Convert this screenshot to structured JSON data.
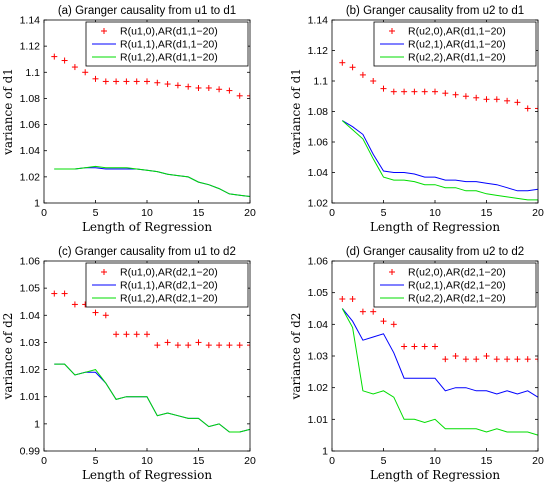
{
  "chart_data": [
    {
      "type": "line",
      "title": "(a) Granger causality from u1 to d1",
      "xlabel": "Length of Regression",
      "ylabel": "variance of d1",
      "xlim": [
        0,
        20
      ],
      "ylim": [
        1.0,
        1.14
      ],
      "xticks": [
        "0",
        "5",
        "10",
        "15",
        "20"
      ],
      "yticks": [
        "1",
        "1.02",
        "1.04",
        "1.06",
        "1.08",
        "1.1",
        "1.12",
        "1.14"
      ],
      "ytick_values": [
        1.0,
        1.02,
        1.04,
        1.06,
        1.08,
        1.1,
        1.12,
        1.14
      ],
      "legend_position": "top-right",
      "x": [
        1,
        2,
        3,
        4,
        5,
        6,
        7,
        8,
        9,
        10,
        11,
        12,
        13,
        14,
        15,
        16,
        17,
        18,
        19,
        20
      ],
      "series": [
        {
          "name": "R(u1,0),AR(d1,1−20)",
          "style": "marker",
          "color": "#ff0000",
          "values": [
            1.112,
            1.109,
            1.104,
            1.1,
            1.095,
            1.093,
            1.093,
            1.093,
            1.093,
            1.093,
            1.092,
            1.091,
            1.09,
            1.089,
            1.088,
            1.088,
            1.087,
            1.086,
            1.082,
            1.082
          ]
        },
        {
          "name": "R(u1,1),AR(d1,1−20)",
          "style": "line",
          "color": "#0000ff",
          "values": [
            1.026,
            1.026,
            1.026,
            1.027,
            1.027,
            1.026,
            1.026,
            1.026,
            1.026,
            1.025,
            1.024,
            1.022,
            1.021,
            1.02,
            1.016,
            1.014,
            1.011,
            1.007,
            1.006,
            1.005
          ]
        },
        {
          "name": "R(u1,2),AR(d1,1−20)",
          "style": "line",
          "color": "#00dd00",
          "values": [
            1.026,
            1.026,
            1.026,
            1.027,
            1.028,
            1.027,
            1.027,
            1.027,
            1.026,
            1.025,
            1.024,
            1.022,
            1.021,
            1.02,
            1.016,
            1.014,
            1.011,
            1.007,
            1.006,
            1.005
          ]
        }
      ]
    },
    {
      "type": "line",
      "title": "(b) Granger causality from u2 to d1",
      "xlabel": "Length of Regression",
      "ylabel": "variance of d1",
      "xlim": [
        0,
        20
      ],
      "ylim": [
        1.02,
        1.14
      ],
      "xticks": [
        "0",
        "5",
        "10",
        "15",
        "20"
      ],
      "yticks": [
        "1.02",
        "1.04",
        "1.06",
        "1.08",
        "1.1",
        "1.12",
        "1.14"
      ],
      "ytick_values": [
        1.02,
        1.04,
        1.06,
        1.08,
        1.1,
        1.12,
        1.14
      ],
      "legend_position": "top-right",
      "x": [
        1,
        2,
        3,
        4,
        5,
        6,
        7,
        8,
        9,
        10,
        11,
        12,
        13,
        14,
        15,
        16,
        17,
        18,
        19,
        20
      ],
      "series": [
        {
          "name": "R(u2,0),AR(d1,1−20)",
          "style": "marker",
          "color": "#ff0000",
          "values": [
            1.112,
            1.109,
            1.104,
            1.1,
            1.095,
            1.093,
            1.093,
            1.093,
            1.093,
            1.093,
            1.092,
            1.091,
            1.09,
            1.089,
            1.088,
            1.088,
            1.087,
            1.086,
            1.082,
            1.082
          ]
        },
        {
          "name": "R(u2,1),AR(d1,1−20)",
          "style": "line",
          "color": "#0000ff",
          "values": [
            1.074,
            1.07,
            1.065,
            1.052,
            1.041,
            1.04,
            1.04,
            1.039,
            1.037,
            1.037,
            1.035,
            1.035,
            1.034,
            1.034,
            1.033,
            1.032,
            1.03,
            1.028,
            1.028,
            1.029
          ]
        },
        {
          "name": "R(u2,2),AR(d1,1−20)",
          "style": "line",
          "color": "#00dd00",
          "values": [
            1.074,
            1.068,
            1.062,
            1.049,
            1.037,
            1.035,
            1.035,
            1.034,
            1.032,
            1.032,
            1.03,
            1.03,
            1.028,
            1.028,
            1.026,
            1.025,
            1.024,
            1.023,
            1.022,
            1.022
          ]
        }
      ]
    },
    {
      "type": "line",
      "title": "(c) Granger causality from u1 to d2",
      "xlabel": "Length of Regression",
      "ylabel": "variance of d2",
      "xlim": [
        0,
        20
      ],
      "ylim": [
        0.99,
        1.06
      ],
      "xticks": [
        "0",
        "5",
        "10",
        "15",
        "20"
      ],
      "yticks": [
        "0.99",
        "1",
        "1.01",
        "1.02",
        "1.03",
        "1.04",
        "1.05",
        "1.06"
      ],
      "ytick_values": [
        0.99,
        1.0,
        1.01,
        1.02,
        1.03,
        1.04,
        1.05,
        1.06
      ],
      "legend_position": "top-right",
      "x": [
        1,
        2,
        3,
        4,
        5,
        6,
        7,
        8,
        9,
        10,
        11,
        12,
        13,
        14,
        15,
        16,
        17,
        18,
        19,
        20
      ],
      "series": [
        {
          "name": "R(u1,0),AR(d2,1−20)",
          "style": "marker",
          "color": "#ff0000",
          "values": [
            1.048,
            1.048,
            1.044,
            1.044,
            1.041,
            1.04,
            1.033,
            1.033,
            1.033,
            1.033,
            1.029,
            1.03,
            1.029,
            1.029,
            1.03,
            1.029,
            1.029,
            1.029,
            1.029,
            1.029
          ]
        },
        {
          "name": "R(u1,1),AR(d2,1−20)",
          "style": "line",
          "color": "#0000ff",
          "values": [
            1.022,
            1.022,
            1.018,
            1.019,
            1.019,
            1.015,
            1.009,
            1.01,
            1.01,
            1.01,
            1.003,
            1.004,
            1.003,
            1.002,
            1.002,
            0.999,
            1.0,
            0.997,
            0.997,
            0.998
          ]
        },
        {
          "name": "R(u1,2),AR(d2,1−20)",
          "style": "line",
          "color": "#00dd00",
          "values": [
            1.022,
            1.022,
            1.018,
            1.019,
            1.02,
            1.015,
            1.009,
            1.01,
            1.01,
            1.01,
            1.003,
            1.004,
            1.003,
            1.002,
            1.002,
            0.999,
            1.0,
            0.997,
            0.997,
            0.998
          ]
        }
      ]
    },
    {
      "type": "line",
      "title": "(d) Granger causality from u2 to d2",
      "xlabel": "Length of Regression",
      "ylabel": "variance of d2",
      "xlim": [
        0,
        20
      ],
      "ylim": [
        1.0,
        1.06
      ],
      "xticks": [
        "0",
        "5",
        "10",
        "15",
        "20"
      ],
      "yticks": [
        "1",
        "1.01",
        "1.02",
        "1.03",
        "1.04",
        "1.05",
        "1.06"
      ],
      "ytick_values": [
        1.0,
        1.01,
        1.02,
        1.03,
        1.04,
        1.05,
        1.06
      ],
      "legend_position": "top-right",
      "x": [
        1,
        2,
        3,
        4,
        5,
        6,
        7,
        8,
        9,
        10,
        11,
        12,
        13,
        14,
        15,
        16,
        17,
        18,
        19,
        20
      ],
      "series": [
        {
          "name": "R(u2,0),AR(d2,1−20)",
          "style": "marker",
          "color": "#ff0000",
          "values": [
            1.048,
            1.048,
            1.044,
            1.044,
            1.041,
            1.04,
            1.033,
            1.033,
            1.033,
            1.033,
            1.029,
            1.03,
            1.029,
            1.029,
            1.03,
            1.029,
            1.029,
            1.029,
            1.029,
            1.029
          ]
        },
        {
          "name": "R(u2,1),AR(d2,1−20)",
          "style": "line",
          "color": "#0000ff",
          "values": [
            1.045,
            1.041,
            1.035,
            1.036,
            1.037,
            1.031,
            1.023,
            1.023,
            1.023,
            1.023,
            1.019,
            1.02,
            1.02,
            1.019,
            1.019,
            1.018,
            1.019,
            1.018,
            1.019,
            1.017
          ]
        },
        {
          "name": "R(u2,2),AR(d2,1−20)",
          "style": "line",
          "color": "#00dd00",
          "values": [
            1.045,
            1.039,
            1.019,
            1.018,
            1.019,
            1.017,
            1.01,
            1.01,
            1.009,
            1.01,
            1.007,
            1.007,
            1.007,
            1.007,
            1.006,
            1.007,
            1.006,
            1.006,
            1.006,
            1.005
          ]
        }
      ]
    }
  ]
}
